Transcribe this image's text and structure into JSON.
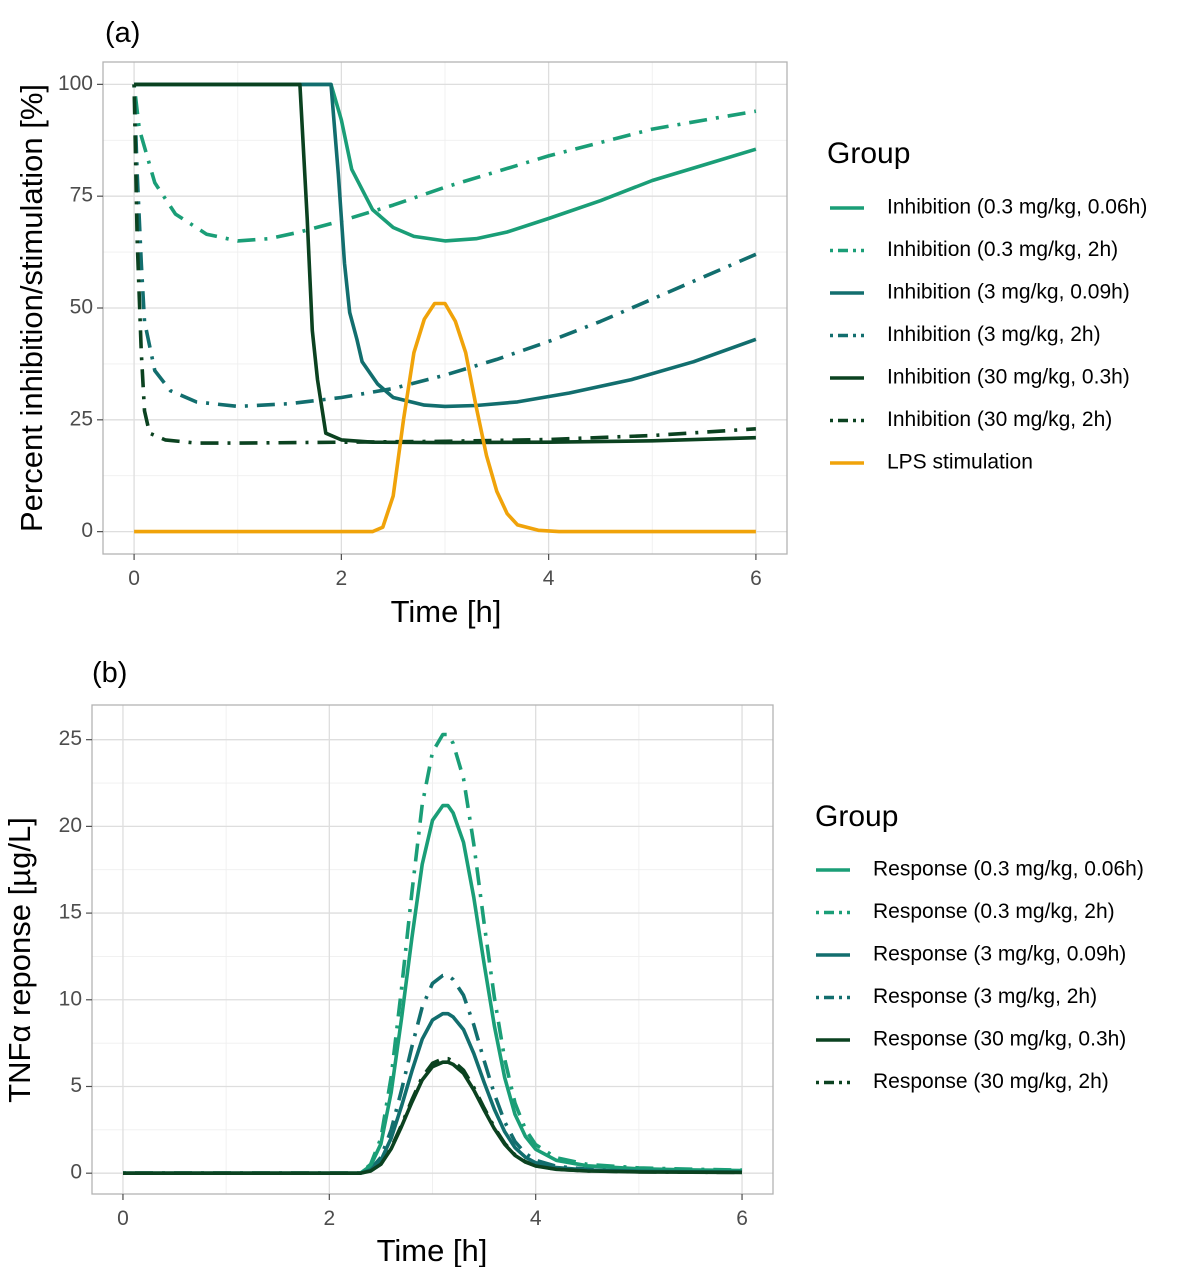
{
  "chart_data": [
    {
      "type": "line",
      "panel_label": "(a)",
      "xlabel": "Time [h]",
      "ylabel": "Percent inhibition/stimulation [%]",
      "xlim": [
        -0.3,
        6.3
      ],
      "ylim": [
        -5,
        105
      ],
      "x_ticks": [
        0,
        2,
        4,
        6
      ],
      "y_ticks": [
        0,
        25,
        50,
        75,
        100
      ],
      "grid": true,
      "legend": {
        "title": "Group",
        "position": "right"
      },
      "series": [
        {
          "name": "Inhibition (0.3 mg/kg, 0.06h)",
          "color": "#1a9e77",
          "dash": "solid",
          "points": [
            [
              0,
              100
            ],
            [
              1.9,
              100
            ],
            [
              2.0,
              92
            ],
            [
              2.1,
              81
            ],
            [
              2.3,
              72
            ],
            [
              2.5,
              68
            ],
            [
              2.7,
              66
            ],
            [
              3.0,
              65
            ],
            [
              3.3,
              65.5
            ],
            [
              3.6,
              67
            ],
            [
              4.0,
              70
            ],
            [
              4.5,
              74
            ],
            [
              5.0,
              78.5
            ],
            [
              5.5,
              82
            ],
            [
              6.0,
              85.5
            ]
          ]
        },
        {
          "name": "Inhibition (0.3 mg/kg, 2h)",
          "color": "#1a9e77",
          "dash": "dotdash",
          "points": [
            [
              0,
              100
            ],
            [
              0.05,
              90
            ],
            [
              0.2,
              78
            ],
            [
              0.4,
              71
            ],
            [
              0.7,
              66.5
            ],
            [
              1.0,
              65
            ],
            [
              1.3,
              65.5
            ],
            [
              1.6,
              67
            ],
            [
              2.0,
              69.5
            ],
            [
              2.5,
              73
            ],
            [
              3.0,
              77
            ],
            [
              3.5,
              80.5
            ],
            [
              4.0,
              84
            ],
            [
              4.5,
              87
            ],
            [
              5.0,
              90
            ],
            [
              5.5,
              92
            ],
            [
              6.0,
              94
            ]
          ]
        },
        {
          "name": "Inhibition (3 mg/kg, 0.09h)",
          "color": "#126e6e",
          "dash": "solid",
          "points": [
            [
              0,
              100
            ],
            [
              1.9,
              100
            ],
            [
              1.97,
              80
            ],
            [
              2.03,
              60
            ],
            [
              2.08,
              49
            ],
            [
              2.15,
              43
            ],
            [
              2.2,
              38
            ],
            [
              2.35,
              33
            ],
            [
              2.5,
              30
            ],
            [
              2.8,
              28.3
            ],
            [
              3.0,
              28
            ],
            [
              3.3,
              28.2
            ],
            [
              3.7,
              29
            ],
            [
              4.2,
              31
            ],
            [
              4.8,
              34
            ],
            [
              5.4,
              38
            ],
            [
              6.0,
              43
            ]
          ]
        },
        {
          "name": "Inhibition (3 mg/kg, 2h)",
          "color": "#126e6e",
          "dash": "dotdash",
          "points": [
            [
              0,
              100
            ],
            [
              0.03,
              80
            ],
            [
              0.07,
              60
            ],
            [
              0.1,
              47
            ],
            [
              0.2,
              36
            ],
            [
              0.35,
              31.5
            ],
            [
              0.6,
              29
            ],
            [
              1.0,
              28
            ],
            [
              1.5,
              28.6
            ],
            [
              2.0,
              30
            ],
            [
              2.5,
              32
            ],
            [
              3.0,
              35
            ],
            [
              3.5,
              38.5
            ],
            [
              4.0,
              42.5
            ],
            [
              4.5,
              47
            ],
            [
              5.0,
              52
            ],
            [
              5.5,
              57
            ],
            [
              6.0,
              62
            ]
          ]
        },
        {
          "name": "Inhibition (30 mg/kg, 0.3h)",
          "color": "#0b4220",
          "dash": "solid",
          "points": [
            [
              0,
              100
            ],
            [
              1.6,
              100
            ],
            [
              1.67,
              70
            ],
            [
              1.72,
              45
            ],
            [
              1.77,
              34
            ],
            [
              1.85,
              22
            ],
            [
              2.0,
              20.5
            ],
            [
              2.3,
              20
            ],
            [
              3.0,
              19.9
            ],
            [
              4.0,
              20
            ],
            [
              5.0,
              20.3
            ],
            [
              6.0,
              21
            ]
          ]
        },
        {
          "name": "Inhibition (30 mg/kg, 2h)",
          "color": "#0b4220",
          "dash": "dotdash",
          "points": [
            [
              0,
              100
            ],
            [
              0.03,
              65
            ],
            [
              0.07,
              40
            ],
            [
              0.1,
              27
            ],
            [
              0.15,
              22
            ],
            [
              0.3,
              20.5
            ],
            [
              0.6,
              19.8
            ],
            [
              1.0,
              19.8
            ],
            [
              2.0,
              20
            ],
            [
              3.0,
              20.2
            ],
            [
              4.0,
              20.6
            ],
            [
              5.0,
              21.5
            ],
            [
              6.0,
              23
            ]
          ]
        },
        {
          "name": "LPS stimulation",
          "color": "#f0a30a",
          "dash": "solid",
          "points": [
            [
              0,
              0
            ],
            [
              2.3,
              0
            ],
            [
              2.4,
              1
            ],
            [
              2.5,
              8
            ],
            [
              2.6,
              25
            ],
            [
              2.7,
              40
            ],
            [
              2.8,
              47.5
            ],
            [
              2.9,
              51
            ],
            [
              3.0,
              51
            ],
            [
              3.1,
              47
            ],
            [
              3.2,
              40
            ],
            [
              3.3,
              28
            ],
            [
              3.4,
              17
            ],
            [
              3.5,
              9
            ],
            [
              3.6,
              4
            ],
            [
              3.7,
              1.5
            ],
            [
              3.9,
              0.3
            ],
            [
              4.1,
              0
            ],
            [
              6.0,
              0
            ]
          ]
        }
      ]
    },
    {
      "type": "line",
      "panel_label": "(b)",
      "xlabel": "Time [h]",
      "ylabel": "TNFα reponse [µg/L]",
      "xlim": [
        -0.3,
        6.3
      ],
      "ylim": [
        -1.2,
        27
      ],
      "x_ticks": [
        0,
        2,
        4,
        6
      ],
      "y_ticks": [
        0,
        5,
        10,
        15,
        20,
        25
      ],
      "grid": true,
      "legend": {
        "title": "Group",
        "position": "right"
      },
      "series": [
        {
          "name": "Response (0.3 mg/kg, 0.06h)",
          "color": "#1a9e77",
          "dash": "solid",
          "peak": 21.2
        },
        {
          "name": "Response (0.3 mg/kg, 2h)",
          "color": "#1a9e77",
          "dash": "dotdash",
          "peak": 25.3
        },
        {
          "name": "Response (3 mg/kg, 0.09h)",
          "color": "#126e6e",
          "dash": "solid",
          "peak": 9.2
        },
        {
          "name": "Response (3 mg/kg, 2h)",
          "color": "#126e6e",
          "dash": "dotdash",
          "peak": 11.4
        },
        {
          "name": "Response (30 mg/kg, 0.3h)",
          "color": "#0b4220",
          "dash": "solid",
          "peak": 6.4
        },
        {
          "name": "Response (30 mg/kg, 2h)",
          "color": "#0b4220",
          "dash": "dotdash",
          "peak": 6.6
        }
      ],
      "response_shape": {
        "x": [
          0,
          2.3,
          2.4,
          2.5,
          2.6,
          2.7,
          2.8,
          2.9,
          3.0,
          3.1,
          3.15,
          3.2,
          3.3,
          3.4,
          3.5,
          3.6,
          3.7,
          3.8,
          3.9,
          4.0,
          4.2,
          4.5,
          5.0,
          5.5,
          6.0
        ],
        "y": [
          0,
          0,
          0.02,
          0.08,
          0.22,
          0.42,
          0.64,
          0.84,
          0.96,
          1.0,
          1.0,
          0.98,
          0.9,
          0.75,
          0.57,
          0.4,
          0.26,
          0.16,
          0.1,
          0.065,
          0.035,
          0.02,
          0.012,
          0.009,
          0.007
        ]
      }
    }
  ]
}
